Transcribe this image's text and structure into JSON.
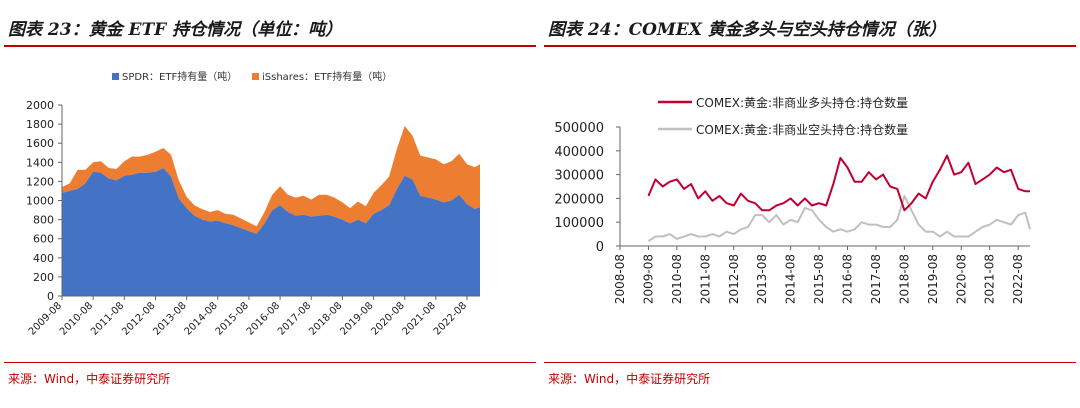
{
  "left": {
    "title": "图表 23：黄金 ETF 持仓情况（单位：吨）",
    "source": "来源：Wind，中泰证券研究所"
  },
  "right": {
    "title": "图表 24：COMEX 黄金多头与空头持仓情况（张）",
    "source": "来源：Wind，中泰证券研究所"
  },
  "colors": {
    "spdr": "#4472c4",
    "ishares": "#ed7d31",
    "long": "#c00030",
    "short": "#c0c0c0",
    "accent": "#c00000"
  },
  "chart_data": [
    {
      "type": "area",
      "stacked": true,
      "legend_position": "top",
      "ylim": [
        0,
        2000
      ],
      "yticks": [
        0,
        200,
        400,
        600,
        800,
        1000,
        1200,
        1400,
        1600,
        1800,
        2000
      ],
      "xticks": [
        "2009-08",
        "2010-08",
        "2011-08",
        "2012-08",
        "2013-08",
        "2014-08",
        "2015-08",
        "2016-08",
        "2017-08",
        "2018-08",
        "2019-08",
        "2020-08",
        "2021-08",
        "2022-08"
      ],
      "x": [
        "2009-08",
        "2009-11",
        "2010-02",
        "2010-05",
        "2010-08",
        "2010-11",
        "2011-02",
        "2011-05",
        "2011-08",
        "2011-11",
        "2012-02",
        "2012-05",
        "2012-08",
        "2012-11",
        "2013-02",
        "2013-05",
        "2013-08",
        "2013-11",
        "2014-02",
        "2014-05",
        "2014-08",
        "2014-11",
        "2015-02",
        "2015-05",
        "2015-08",
        "2015-11",
        "2016-02",
        "2016-05",
        "2016-08",
        "2016-11",
        "2017-02",
        "2017-05",
        "2017-08",
        "2017-11",
        "2018-02",
        "2018-05",
        "2018-08",
        "2018-11",
        "2019-02",
        "2019-05",
        "2019-08",
        "2019-11",
        "2020-02",
        "2020-05",
        "2020-08",
        "2020-11",
        "2021-02",
        "2021-05",
        "2021-08",
        "2021-11",
        "2022-02",
        "2022-05",
        "2022-08",
        "2022-11",
        "2023-01"
      ],
      "series": [
        {
          "name": "SPDR：ETF持有量（吨）",
          "values": [
            1080,
            1100,
            1120,
            1180,
            1300,
            1290,
            1230,
            1210,
            1260,
            1270,
            1290,
            1290,
            1300,
            1340,
            1250,
            1020,
            920,
            840,
            800,
            780,
            790,
            760,
            740,
            710,
            680,
            650,
            760,
            900,
            950,
            880,
            840,
            850,
            830,
            840,
            850,
            830,
            800,
            760,
            800,
            760,
            860,
            900,
            950,
            1120,
            1260,
            1220,
            1050,
            1030,
            1010,
            980,
            1000,
            1060,
            960,
            910,
            930
          ]
        },
        {
          "name": "iSshares：ETF持有量（吨）",
          "values": [
            60,
            80,
            200,
            140,
            100,
            120,
            110,
            120,
            150,
            190,
            170,
            190,
            210,
            210,
            230,
            190,
            120,
            110,
            110,
            100,
            110,
            100,
            110,
            100,
            90,
            80,
            120,
            160,
            200,
            180,
            190,
            200,
            180,
            220,
            210,
            200,
            180,
            160,
            190,
            180,
            220,
            260,
            300,
            420,
            520,
            460,
            420,
            420,
            420,
            400,
            410,
            430,
            420,
            440,
            450
          ]
        }
      ]
    },
    {
      "type": "line",
      "legend_position": "top",
      "ylim": [
        0,
        500000
      ],
      "yticks": [
        0,
        100000,
        200000,
        300000,
        400000,
        500000
      ],
      "xticks": [
        "2008-08",
        "2009-08",
        "2010-08",
        "2011-08",
        "2012-08",
        "2013-08",
        "2014-08",
        "2015-08",
        "2016-08",
        "2017-08",
        "2018-08",
        "2019-08",
        "2020-08",
        "2021-08",
        "2022-08"
      ],
      "x": [
        "2009-08",
        "2009-11",
        "2010-02",
        "2010-05",
        "2010-08",
        "2010-11",
        "2011-02",
        "2011-05",
        "2011-08",
        "2011-11",
        "2012-02",
        "2012-05",
        "2012-08",
        "2012-11",
        "2013-02",
        "2013-05",
        "2013-08",
        "2013-11",
        "2014-02",
        "2014-05",
        "2014-08",
        "2014-11",
        "2015-02",
        "2015-05",
        "2015-08",
        "2015-11",
        "2016-02",
        "2016-05",
        "2016-08",
        "2016-11",
        "2017-02",
        "2017-05",
        "2017-08",
        "2017-11",
        "2018-02",
        "2018-05",
        "2018-08",
        "2018-11",
        "2019-02",
        "2019-05",
        "2019-08",
        "2019-11",
        "2020-02",
        "2020-05",
        "2020-08",
        "2020-11",
        "2021-02",
        "2021-05",
        "2021-08",
        "2021-11",
        "2022-02",
        "2022-05",
        "2022-08",
        "2022-11",
        "2023-01"
      ],
      "series": [
        {
          "name": "COMEX:黄金:非商业多头持仓:持仓数量",
          "values": [
            210000,
            280000,
            250000,
            270000,
            280000,
            240000,
            260000,
            200000,
            230000,
            190000,
            210000,
            180000,
            170000,
            220000,
            190000,
            180000,
            150000,
            150000,
            170000,
            180000,
            200000,
            170000,
            200000,
            170000,
            180000,
            170000,
            260000,
            370000,
            330000,
            270000,
            270000,
            310000,
            280000,
            300000,
            250000,
            240000,
            150000,
            180000,
            220000,
            200000,
            270000,
            320000,
            380000,
            300000,
            310000,
            350000,
            260000,
            280000,
            300000,
            330000,
            310000,
            320000,
            240000,
            230000,
            230000
          ]
        },
        {
          "name": "COMEX:黄金:非商业空头持仓:持仓数量",
          "values": [
            20000,
            40000,
            40000,
            50000,
            30000,
            40000,
            50000,
            40000,
            40000,
            50000,
            40000,
            60000,
            50000,
            70000,
            80000,
            130000,
            130000,
            100000,
            130000,
            90000,
            110000,
            100000,
            160000,
            150000,
            110000,
            80000,
            60000,
            70000,
            60000,
            70000,
            100000,
            90000,
            90000,
            80000,
            80000,
            110000,
            210000,
            150000,
            90000,
            60000,
            60000,
            40000,
            60000,
            40000,
            40000,
            40000,
            60000,
            80000,
            90000,
            110000,
            100000,
            90000,
            130000,
            140000,
            70000
          ]
        }
      ]
    }
  ]
}
